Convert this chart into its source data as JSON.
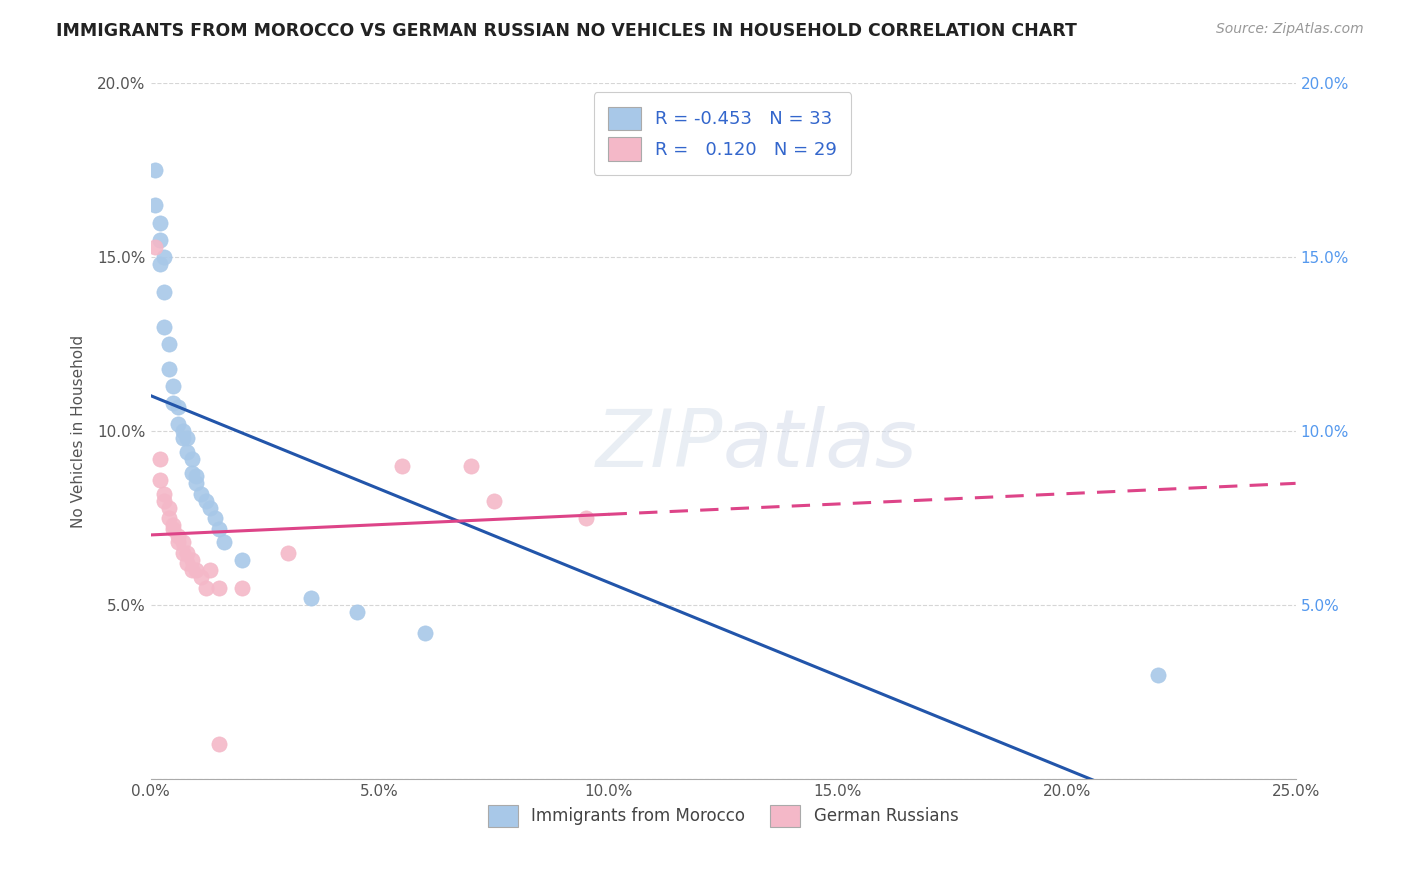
{
  "title": "IMMIGRANTS FROM MOROCCO VS GERMAN RUSSIAN NO VEHICLES IN HOUSEHOLD CORRELATION CHART",
  "source": "Source: ZipAtlas.com",
  "ylabel": "No Vehicles in Household",
  "xlabel_blue": "Immigrants from Morocco",
  "xlabel_pink": "German Russians",
  "xlim": [
    0.0,
    0.25
  ],
  "ylim": [
    0.0,
    0.2
  ],
  "xticks": [
    0.0,
    0.05,
    0.1,
    0.15,
    0.2,
    0.25
  ],
  "yticks": [
    0.0,
    0.05,
    0.1,
    0.15,
    0.2
  ],
  "xtick_labels": [
    "0.0%",
    "5.0%",
    "10.0%",
    "15.0%",
    "20.0%",
    "25.0%"
  ],
  "ytick_labels_left": [
    "",
    "5.0%",
    "10.0%",
    "15.0%",
    "20.0%"
  ],
  "ytick_labels_right": [
    "",
    "5.0%",
    "10.0%",
    "15.0%",
    "20.0%"
  ],
  "legend_blue_R": "-0.453",
  "legend_blue_N": "33",
  "legend_pink_R": "0.120",
  "legend_pink_N": "29",
  "blue_color": "#a8c8e8",
  "pink_color": "#f4b8c8",
  "blue_line_color": "#2255aa",
  "pink_line_color": "#dd4488",
  "pink_dashed_color": "#dd4488",
  "background_color": "#ffffff",
  "grid_color": "#cccccc",
  "blue_scatter": [
    [
      0.001,
      0.175
    ],
    [
      0.001,
      0.165
    ],
    [
      0.002,
      0.16
    ],
    [
      0.002,
      0.155
    ],
    [
      0.002,
      0.148
    ],
    [
      0.003,
      0.15
    ],
    [
      0.003,
      0.14
    ],
    [
      0.003,
      0.13
    ],
    [
      0.004,
      0.125
    ],
    [
      0.004,
      0.118
    ],
    [
      0.005,
      0.113
    ],
    [
      0.005,
      0.108
    ],
    [
      0.006,
      0.107
    ],
    [
      0.006,
      0.102
    ],
    [
      0.007,
      0.1
    ],
    [
      0.007,
      0.098
    ],
    [
      0.008,
      0.098
    ],
    [
      0.008,
      0.094
    ],
    [
      0.009,
      0.092
    ],
    [
      0.009,
      0.088
    ],
    [
      0.01,
      0.087
    ],
    [
      0.01,
      0.085
    ],
    [
      0.011,
      0.082
    ],
    [
      0.012,
      0.08
    ],
    [
      0.013,
      0.078
    ],
    [
      0.014,
      0.075
    ],
    [
      0.015,
      0.072
    ],
    [
      0.016,
      0.068
    ],
    [
      0.02,
      0.063
    ],
    [
      0.035,
      0.052
    ],
    [
      0.045,
      0.048
    ],
    [
      0.22,
      0.03
    ],
    [
      0.06,
      0.042
    ]
  ],
  "pink_scatter": [
    [
      0.001,
      0.153
    ],
    [
      0.002,
      0.092
    ],
    [
      0.002,
      0.086
    ],
    [
      0.003,
      0.082
    ],
    [
      0.003,
      0.08
    ],
    [
      0.004,
      0.078
    ],
    [
      0.004,
      0.075
    ],
    [
      0.005,
      0.073
    ],
    [
      0.005,
      0.072
    ],
    [
      0.006,
      0.07
    ],
    [
      0.006,
      0.068
    ],
    [
      0.007,
      0.068
    ],
    [
      0.007,
      0.065
    ],
    [
      0.008,
      0.065
    ],
    [
      0.008,
      0.062
    ],
    [
      0.009,
      0.063
    ],
    [
      0.009,
      0.06
    ],
    [
      0.01,
      0.06
    ],
    [
      0.011,
      0.058
    ],
    [
      0.012,
      0.055
    ],
    [
      0.013,
      0.06
    ],
    [
      0.015,
      0.055
    ],
    [
      0.02,
      0.055
    ],
    [
      0.03,
      0.065
    ],
    [
      0.055,
      0.09
    ],
    [
      0.07,
      0.09
    ],
    [
      0.075,
      0.08
    ],
    [
      0.095,
      0.075
    ],
    [
      0.015,
      0.01
    ]
  ]
}
